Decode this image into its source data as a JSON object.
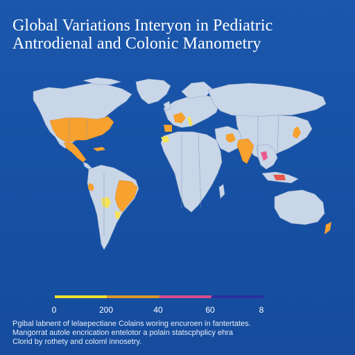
{
  "title": {
    "line1": "Global Variations Interyon in Pediatric",
    "line2": "Antrodienal and Colonic Manometry"
  },
  "colors": {
    "background": "#1a53a6",
    "land": "#c9d6e8",
    "highlight_orange": "#f7a12e",
    "highlight_yellow": "#f5e35a",
    "highlight_pink": "#e85a8d",
    "highlight_red": "#e8574a"
  },
  "legend": {
    "ticks": [
      "0",
      "200",
      "40",
      "60",
      "8"
    ],
    "colors": [
      "#f2e12a",
      "#d99a2a",
      "#d64c8a",
      "#2b2fa0"
    ]
  },
  "caption": {
    "line1": "Pgibal labnent of lelaepectiane Colains woring encuroen in fantertates.",
    "line2": "Mangorrat autole encrication entelotor a polain statscphplicy ehra",
    "line3": "Clorid by rothety and coloml innosetry."
  },
  "regions_highlighted": [
    {
      "name": "usa",
      "color": "#f7a12e"
    },
    {
      "name": "central-america",
      "color": "#f7a12e"
    },
    {
      "name": "cuba",
      "color": "#f7a12e"
    },
    {
      "name": "brazil",
      "color": "#f7a12e"
    },
    {
      "name": "brazil-west",
      "color": "#f5e35a"
    },
    {
      "name": "chile",
      "color": "#f7a12e"
    },
    {
      "name": "paraguay",
      "color": "#f5e35a"
    },
    {
      "name": "western-europe",
      "color": "#f7a12e"
    },
    {
      "name": "iberia",
      "color": "#f7a12e"
    },
    {
      "name": "north-africa-west",
      "color": "#f5e35a"
    },
    {
      "name": "middle-east",
      "color": "#f7a12e"
    },
    {
      "name": "india",
      "color": "#f7a12e"
    },
    {
      "name": "thailand",
      "color": "#e85a8d"
    },
    {
      "name": "indonesia",
      "color": "#e8574a"
    },
    {
      "name": "japan",
      "color": "#f7a12e"
    },
    {
      "name": "new-zealand",
      "color": "#f7a12e"
    }
  ]
}
